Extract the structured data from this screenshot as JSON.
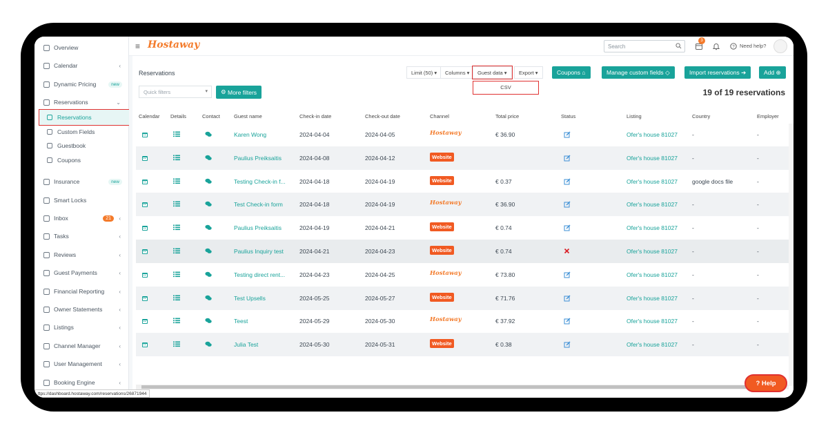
{
  "topbar": {
    "logo": "Hostaway",
    "search_placeholder": "Search",
    "notification_count": "3",
    "need_help": "Need help?"
  },
  "sidebar": {
    "items": [
      {
        "label": "Overview",
        "icon": "home-icon"
      },
      {
        "label": "Calendar",
        "icon": "calendar-icon",
        "chevron": "‹"
      },
      {
        "label": "Dynamic Pricing",
        "icon": "chart-icon",
        "badge": "new"
      },
      {
        "label": "Reservations",
        "icon": "reservations-icon",
        "chevron": "⌄"
      },
      {
        "label": "Insurance",
        "icon": "home-icon",
        "badge": "new"
      },
      {
        "label": "Smart Locks",
        "icon": "key-icon"
      },
      {
        "label": "Inbox",
        "icon": "chat-icon",
        "count": "21",
        "chevron": "‹"
      },
      {
        "label": "Tasks",
        "icon": "tasks-icon",
        "chevron": "‹"
      },
      {
        "label": "Reviews",
        "icon": "star-icon",
        "chevron": "‹"
      },
      {
        "label": "Guest Payments",
        "icon": "card-icon",
        "chevron": "‹"
      },
      {
        "label": "Financial Reporting",
        "icon": "money-icon",
        "chevron": "‹"
      },
      {
        "label": "Owner Statements",
        "icon": "statement-icon",
        "chevron": "‹"
      },
      {
        "label": "Listings",
        "icon": "list-icon",
        "chevron": "‹"
      },
      {
        "label": "Channel Manager",
        "icon": "channel-icon",
        "chevron": "‹"
      },
      {
        "label": "User Management",
        "icon": "user-icon",
        "chevron": "‹"
      },
      {
        "label": "Booking Engine",
        "icon": "booking-icon",
        "chevron": "‹"
      }
    ],
    "sub_items": [
      {
        "label": "Reservations",
        "icon": "calendar-check-icon",
        "active": true
      },
      {
        "label": "Custom Fields",
        "icon": "diamond-icon"
      },
      {
        "label": "Guestbook",
        "icon": "book-icon"
      },
      {
        "label": "Coupons",
        "icon": "tag-icon"
      }
    ]
  },
  "main": {
    "title": "Reservations",
    "toolbar": {
      "limit": "Limit (50)",
      "columns": "Columns",
      "guest_data": "Guest data",
      "export": "Export",
      "coupons": "Coupons",
      "manage_custom_fields": "Manage custom fields",
      "import_reservations": "Import reservations",
      "add": "Add"
    },
    "dropdown_option": "CSV",
    "quick_filters_placeholder": "Quick filters",
    "more_filters": "More filters",
    "count_text": "19 of 19 reservations",
    "columns": [
      "Calendar",
      "Details",
      "Contact",
      "Guest name",
      "Check-in date",
      "Check-out date",
      "Channel",
      "Total price",
      "Status",
      "Listing",
      "Country",
      "Employer"
    ],
    "rows": [
      {
        "guest": "Karen Wong",
        "checkin": "2024-04-04",
        "checkout": "2024-04-05",
        "channel": "Hostaway",
        "price": "€ 36.90",
        "status": "edit",
        "listing": "Ofer's house 81027",
        "country": "-",
        "employer": "-"
      },
      {
        "guest": "Paulius Preiksaitis",
        "checkin": "2024-04-08",
        "checkout": "2024-04-12",
        "channel": "Website",
        "price": "",
        "status": "edit",
        "listing": "Ofer's house 81027",
        "country": "-",
        "employer": "-"
      },
      {
        "guest": "Testing Check-in f...",
        "checkin": "2024-04-18",
        "checkout": "2024-04-19",
        "channel": "Website",
        "price": "€ 0.37",
        "status": "edit",
        "listing": "Ofer's house 81027",
        "country": "google docs file",
        "employer": "-"
      },
      {
        "guest": "Test Check-in form",
        "checkin": "2024-04-18",
        "checkout": "2024-04-19",
        "channel": "Hostaway",
        "price": "€ 36.90",
        "status": "edit",
        "listing": "Ofer's house 81027",
        "country": "-",
        "employer": "-"
      },
      {
        "guest": "Paulius Preiksaitis",
        "checkin": "2024-04-19",
        "checkout": "2024-04-21",
        "channel": "Website",
        "price": "€ 0.74",
        "status": "edit",
        "listing": "Ofer's house 81027",
        "country": "-",
        "employer": "-"
      },
      {
        "guest": "Paulius Inquiry test",
        "checkin": "2024-04-21",
        "checkout": "2024-04-23",
        "channel": "Website",
        "price": "€ 0.74",
        "status": "cancelled",
        "listing": "Ofer's house 81027",
        "country": "-",
        "employer": "-"
      },
      {
        "guest": "Testing direct rent...",
        "checkin": "2024-04-23",
        "checkout": "2024-04-25",
        "channel": "Hostaway",
        "price": "€ 73.80",
        "status": "edit",
        "listing": "Ofer's house 81027",
        "country": "-",
        "employer": "-"
      },
      {
        "guest": "Test Upsells",
        "checkin": "2024-05-25",
        "checkout": "2024-05-27",
        "channel": "Website",
        "price": "€ 71.76",
        "status": "edit",
        "listing": "Ofer's house 81027",
        "country": "-",
        "employer": "-"
      },
      {
        "guest": "Teest",
        "checkin": "2024-05-29",
        "checkout": "2024-05-30",
        "channel": "Hostaway",
        "price": "€ 37.92",
        "status": "edit",
        "listing": "Ofer's house 81027",
        "country": "-",
        "employer": "-"
      },
      {
        "guest": "Julia Test",
        "checkin": "2024-05-30",
        "checkout": "2024-05-31",
        "channel": "Website",
        "price": "€ 0.38",
        "status": "edit",
        "listing": "Ofer's house 81027",
        "country": "-",
        "employer": "-"
      }
    ]
  },
  "help_button": "Help",
  "status_url": "ttps://dashboard.hostaway.com/reservations/26871944",
  "colors": {
    "accent": "#19a39a",
    "brand": "#f37b2b",
    "website_badge": "#f15a22",
    "highlight": "#e0302f"
  }
}
